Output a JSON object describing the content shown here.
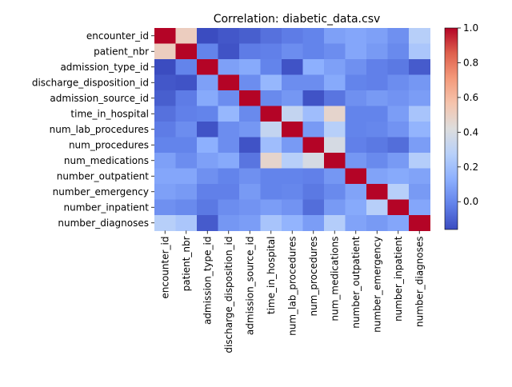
{
  "chart_data": {
    "type": "heatmap",
    "title": "Correlation: diabetic_data.csv",
    "xlabel": "",
    "ylabel": "",
    "colormap": "coolwarm",
    "vmin": -0.16,
    "vmax": 1.0,
    "labels": [
      "encounter_id",
      "patient_nbr",
      "admission_type_id",
      "discharge_disposition_id",
      "admission_source_id",
      "time_in_hospital",
      "num_lab_procedures",
      "num_procedures",
      "num_medications",
      "number_outpatient",
      "number_emergency",
      "number_inpatient",
      "number_diagnoses"
    ],
    "matrix": [
      [
        1.0,
        0.51,
        -0.16,
        -0.13,
        -0.11,
        -0.06,
        -0.03,
        -0.01,
        0.08,
        0.1,
        0.08,
        0.03,
        0.27
      ],
      [
        0.51,
        1.0,
        -0.01,
        -0.14,
        -0.03,
        -0.02,
        0.02,
        -0.01,
        0.02,
        0.1,
        0.06,
        0.01,
        0.23
      ],
      [
        -0.16,
        -0.01,
        1.0,
        0.08,
        0.11,
        -0.01,
        -0.14,
        0.13,
        0.08,
        0.03,
        -0.02,
        -0.04,
        -0.12
      ],
      [
        -0.13,
        -0.14,
        0.08,
        1.0,
        0.02,
        0.16,
        0.02,
        0.02,
        0.11,
        -0.01,
        -0.02,
        0.02,
        0.05
      ],
      [
        -0.11,
        -0.03,
        0.11,
        0.02,
        1.0,
        0.01,
        0.05,
        -0.14,
        -0.05,
        0.03,
        0.06,
        0.04,
        0.07
      ],
      [
        -0.06,
        -0.02,
        -0.01,
        0.16,
        0.01,
        1.0,
        0.32,
        0.19,
        0.47,
        -0.01,
        -0.01,
        0.07,
        0.22
      ],
      [
        -0.03,
        0.02,
        -0.14,
        0.02,
        0.05,
        0.32,
        1.0,
        0.06,
        0.27,
        -0.01,
        -0.0,
        0.04,
        0.15
      ],
      [
        -0.01,
        -0.01,
        0.13,
        0.02,
        -0.14,
        0.19,
        0.06,
        1.0,
        0.39,
        -0.02,
        -0.04,
        -0.07,
        0.07
      ],
      [
        0.08,
        0.02,
        0.08,
        0.11,
        -0.05,
        0.47,
        0.27,
        0.39,
        1.0,
        0.05,
        0.01,
        0.06,
        0.26
      ],
      [
        0.1,
        0.1,
        0.03,
        -0.01,
        0.03,
        -0.01,
        -0.01,
        -0.02,
        0.05,
        1.0,
        0.09,
        0.11,
        0.09
      ],
      [
        0.08,
        0.06,
        -0.02,
        -0.02,
        0.06,
        -0.01,
        -0.0,
        -0.04,
        0.01,
        0.09,
        1.0,
        0.27,
        0.06
      ],
      [
        0.03,
        0.01,
        -0.04,
        0.02,
        0.04,
        0.07,
        0.04,
        -0.07,
        0.06,
        0.11,
        0.27,
        1.0,
        0.1
      ],
      [
        0.27,
        0.23,
        -0.12,
        0.05,
        0.07,
        0.22,
        0.15,
        0.07,
        0.26,
        0.09,
        0.06,
        0.1,
        1.0
      ]
    ],
    "colorbar_ticks": [
      "1.0",
      "0.8",
      "0.6",
      "0.4",
      "0.2",
      "0.0"
    ],
    "colorbar_tick_values": [
      1.0,
      0.8,
      0.6,
      0.4,
      0.2,
      0.0
    ],
    "grid": false,
    "legend": "colorbar-right"
  }
}
